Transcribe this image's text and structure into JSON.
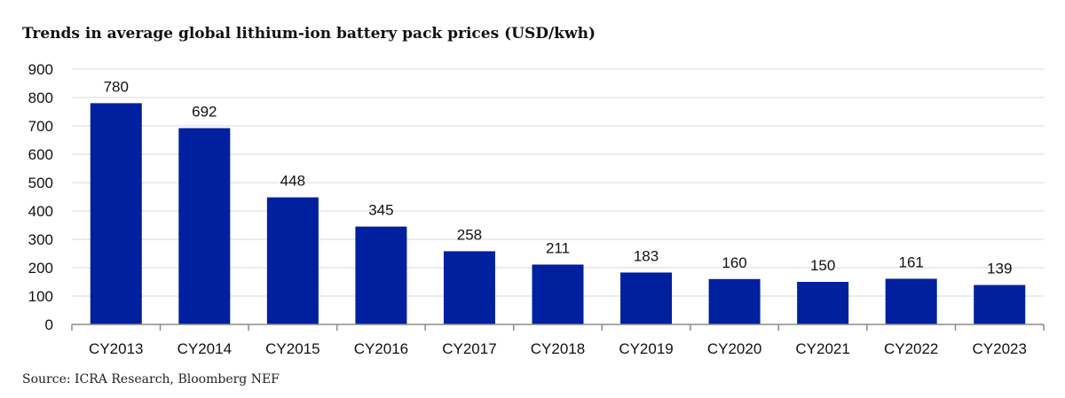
{
  "chart_data": {
    "type": "bar",
    "title": "Trends in average global lithium-ion battery pack prices (USD/kwh)",
    "source": "Source: ICRA Research, Bloomberg NEF",
    "categories": [
      "CY2013",
      "CY2014",
      "CY2015",
      "CY2016",
      "CY2017",
      "CY2018",
      "CY2019",
      "CY2020",
      "CY2021",
      "CY2022",
      "CY2023"
    ],
    "values": [
      780,
      692,
      448,
      345,
      258,
      211,
      183,
      160,
      150,
      161,
      139
    ],
    "ylim": [
      0,
      900
    ],
    "yticks": [
      0,
      100,
      200,
      300,
      400,
      500,
      600,
      700,
      800,
      900
    ],
    "grid": true,
    "legend": "none",
    "bar_color": "#00209F",
    "xlabel": "",
    "ylabel": ""
  }
}
